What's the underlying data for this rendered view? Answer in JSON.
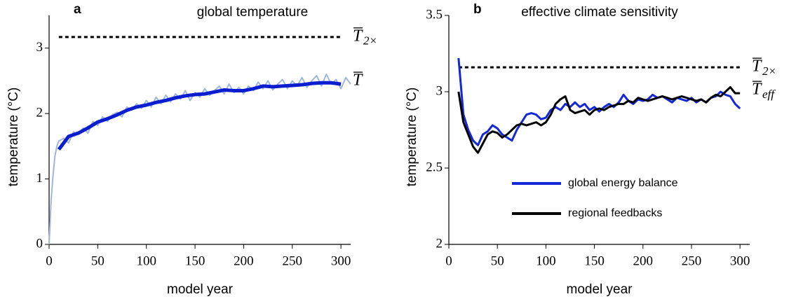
{
  "chart_data": [
    {
      "type": "line",
      "panel": "a",
      "title": "global temperature",
      "xlabel": "model year",
      "ylabel": "temperature (°C)",
      "xlim": [
        0,
        310
      ],
      "ylim": [
        0,
        3.5
      ],
      "xticks": [
        0,
        50,
        100,
        150,
        200,
        250,
        300
      ],
      "yticks": [
        0,
        1,
        2,
        3
      ],
      "reference_line": {
        "value": 3.17,
        "style": "dashed",
        "color": "#000000",
        "label": "T",
        "subscript": "2×"
      },
      "end_label": {
        "text": "T"
      },
      "series": [
        {
          "color": "#9fb5de",
          "width": 2,
          "x": [
            0,
            2,
            4,
            6,
            8,
            10,
            15,
            20,
            25,
            30,
            35,
            40,
            45,
            50,
            55,
            60,
            65,
            70,
            75,
            80,
            85,
            90,
            95,
            100,
            105,
            110,
            115,
            120,
            125,
            130,
            135,
            140,
            145,
            150,
            155,
            160,
            165,
            170,
            175,
            180,
            185,
            190,
            195,
            200,
            205,
            210,
            215,
            220,
            225,
            230,
            235,
            240,
            245,
            250,
            255,
            260,
            265,
            270,
            275,
            280,
            285,
            290,
            295,
            300,
            305,
            310
          ],
          "values": [
            0,
            0.65,
            1.05,
            1.35,
            1.5,
            1.58,
            1.62,
            1.55,
            1.72,
            1.68,
            1.78,
            1.7,
            1.88,
            1.82,
            1.95,
            1.88,
            1.98,
            2.02,
            1.95,
            2.1,
            2.05,
            2.15,
            2.08,
            2.2,
            2.1,
            2.25,
            2.15,
            2.28,
            2.18,
            2.3,
            2.22,
            2.35,
            2.2,
            2.32,
            2.25,
            2.38,
            2.28,
            2.35,
            2.42,
            2.3,
            2.45,
            2.32,
            2.4,
            2.3,
            2.42,
            2.35,
            2.48,
            2.38,
            2.5,
            2.36,
            2.45,
            2.52,
            2.38,
            2.5,
            2.42,
            2.55,
            2.4,
            2.5,
            2.58,
            2.42,
            2.6,
            2.45,
            2.52,
            2.38,
            2.55,
            2.45
          ]
        },
        {
          "color": "#0a1ecf",
          "width": 5,
          "x": [
            10,
            20,
            30,
            40,
            50,
            60,
            70,
            80,
            90,
            100,
            110,
            120,
            130,
            140,
            150,
            160,
            170,
            180,
            190,
            200,
            210,
            220,
            230,
            240,
            250,
            260,
            270,
            280,
            290,
            300
          ],
          "values": [
            1.45,
            1.65,
            1.7,
            1.78,
            1.87,
            1.92,
            1.98,
            2.05,
            2.1,
            2.13,
            2.17,
            2.2,
            2.24,
            2.27,
            2.29,
            2.3,
            2.33,
            2.36,
            2.35,
            2.35,
            2.38,
            2.42,
            2.41,
            2.42,
            2.43,
            2.44,
            2.46,
            2.47,
            2.47,
            2.45
          ]
        }
      ]
    },
    {
      "type": "line",
      "panel": "b",
      "title": "effective climate sensitivity",
      "xlabel": "model year",
      "ylabel": "temperature (°C)",
      "xlim": [
        0,
        310
      ],
      "ylim": [
        2,
        3.5
      ],
      "xticks": [
        0,
        50,
        100,
        150,
        200,
        250,
        300
      ],
      "yticks": [
        2,
        2.5,
        3,
        3.5
      ],
      "reference_line": {
        "value": 3.16,
        "style": "dashed",
        "color": "#000000",
        "label": "T",
        "subscript": "2×"
      },
      "end_label": {
        "text": "T",
        "subscript": "eff"
      },
      "legend": true,
      "series": [
        {
          "name": "global energy balance",
          "color": "#1428d8",
          "width": 3,
          "x": [
            10,
            15,
            20,
            25,
            30,
            35,
            40,
            45,
            50,
            55,
            60,
            65,
            70,
            75,
            80,
            85,
            90,
            95,
            100,
            105,
            110,
            115,
            120,
            125,
            130,
            135,
            140,
            145,
            150,
            155,
            160,
            165,
            170,
            175,
            180,
            185,
            190,
            195,
            200,
            205,
            210,
            215,
            220,
            225,
            230,
            235,
            240,
            245,
            250,
            255,
            260,
            265,
            270,
            275,
            280,
            285,
            290,
            295,
            300
          ],
          "values": [
            3.22,
            2.85,
            2.75,
            2.68,
            2.65,
            2.72,
            2.74,
            2.78,
            2.76,
            2.72,
            2.7,
            2.68,
            2.75,
            2.8,
            2.85,
            2.86,
            2.85,
            2.82,
            2.83,
            2.88,
            2.9,
            2.88,
            2.92,
            2.9,
            2.93,
            2.9,
            2.92,
            2.88,
            2.9,
            2.87,
            2.9,
            2.92,
            2.9,
            2.93,
            2.98,
            2.94,
            2.92,
            2.95,
            2.94,
            2.95,
            2.98,
            2.96,
            2.97,
            2.95,
            2.93,
            2.96,
            2.95,
            2.94,
            2.96,
            2.93,
            2.95,
            2.93,
            2.96,
            2.97,
            3.0,
            2.98,
            2.97,
            2.92,
            2.89
          ]
        },
        {
          "name": "regional feedbacks",
          "color": "#000000",
          "width": 3,
          "x": [
            10,
            15,
            20,
            25,
            30,
            35,
            40,
            45,
            50,
            55,
            60,
            65,
            70,
            75,
            80,
            85,
            90,
            95,
            100,
            105,
            110,
            115,
            120,
            125,
            130,
            135,
            140,
            145,
            150,
            155,
            160,
            165,
            170,
            175,
            180,
            185,
            190,
            195,
            200,
            205,
            210,
            215,
            220,
            225,
            230,
            235,
            240,
            245,
            250,
            255,
            260,
            265,
            270,
            275,
            280,
            285,
            290,
            295,
            300
          ],
          "values": [
            3.0,
            2.8,
            2.72,
            2.64,
            2.6,
            2.66,
            2.72,
            2.74,
            2.73,
            2.7,
            2.72,
            2.75,
            2.78,
            2.79,
            2.78,
            2.79,
            2.8,
            2.78,
            2.8,
            2.85,
            2.92,
            2.95,
            2.97,
            2.88,
            2.86,
            2.87,
            2.88,
            2.85,
            2.88,
            2.89,
            2.88,
            2.9,
            2.91,
            2.92,
            2.92,
            2.94,
            2.93,
            2.96,
            2.95,
            2.94,
            2.95,
            2.96,
            2.97,
            2.96,
            2.95,
            2.96,
            2.97,
            2.96,
            2.95,
            2.94,
            2.95,
            2.93,
            2.96,
            2.98,
            2.97,
            3.0,
            3.03,
            2.99,
            2.99
          ]
        }
      ]
    }
  ]
}
